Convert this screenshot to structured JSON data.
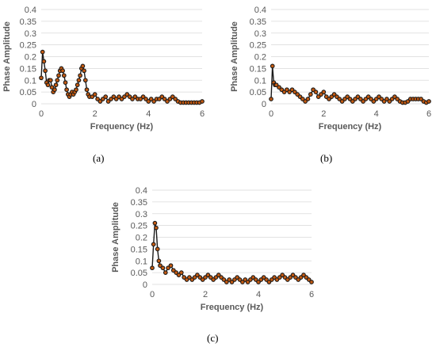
{
  "captions": [
    "(a)",
    "(b)",
    "(c)"
  ],
  "colors": {
    "marker_fill": "#c55a11",
    "marker_stroke": "#1a1a1a",
    "line": "#1a1a1a",
    "grid": "#d9d9d9",
    "text": "#595959"
  },
  "chart_data": [
    {
      "type": "line",
      "panel": "(a)",
      "title": "",
      "xlabel": "Frequency (Hz)",
      "ylabel": "Phase Amplitude",
      "xlim": [
        0,
        6
      ],
      "ylim": [
        0,
        0.4
      ],
      "xticks": [
        "0",
        "2",
        "4",
        "6"
      ],
      "yticks": [
        "0",
        "0.05",
        "0.1",
        "0.15",
        "0.2",
        "0.25",
        "0.3",
        "0.35",
        "0.4"
      ],
      "grid": "horizontal",
      "series": [
        {
          "x": [
            0,
            0.05,
            0.1,
            0.15,
            0.2,
            0.25,
            0.3,
            0.35,
            0.4,
            0.45,
            0.5,
            0.55,
            0.6,
            0.65,
            0.7,
            0.75,
            0.8,
            0.85,
            0.9,
            0.95,
            1.0,
            1.05,
            1.1,
            1.15,
            1.2,
            1.25,
            1.3,
            1.35,
            1.4,
            1.45,
            1.5,
            1.55,
            1.6,
            1.65,
            1.7,
            1.75,
            1.8,
            1.9,
            2.0,
            2.1,
            2.2,
            2.3,
            2.4,
            2.5,
            2.6,
            2.7,
            2.8,
            2.9,
            3.0,
            3.1,
            3.2,
            3.3,
            3.4,
            3.5,
            3.6,
            3.7,
            3.8,
            3.9,
            4.0,
            4.1,
            4.2,
            4.3,
            4.4,
            4.5,
            4.6,
            4.7,
            4.8,
            4.9,
            5.0,
            5.1,
            5.2,
            5.3,
            5.4,
            5.5,
            5.6,
            5.7,
            5.8,
            5.9,
            6.0
          ],
          "y": [
            0.11,
            0.22,
            0.18,
            0.14,
            0.09,
            0.08,
            0.1,
            0.1,
            0.07,
            0.05,
            0.06,
            0.08,
            0.1,
            0.12,
            0.14,
            0.15,
            0.14,
            0.12,
            0.09,
            0.06,
            0.04,
            0.03,
            0.04,
            0.05,
            0.04,
            0.05,
            0.06,
            0.08,
            0.1,
            0.12,
            0.15,
            0.16,
            0.14,
            0.1,
            0.06,
            0.04,
            0.03,
            0.03,
            0.04,
            0.02,
            0.01,
            0.02,
            0.03,
            0.01,
            0.02,
            0.03,
            0.02,
            0.03,
            0.02,
            0.03,
            0.04,
            0.03,
            0.02,
            0.03,
            0.02,
            0.02,
            0.03,
            0.02,
            0.01,
            0.02,
            0.01,
            0.02,
            0.02,
            0.03,
            0.02,
            0.01,
            0.02,
            0.03,
            0.02,
            0.01,
            0.005,
            0.005,
            0.005,
            0.005,
            0.005,
            0.005,
            0.005,
            0.005,
            0.01
          ]
        }
      ]
    },
    {
      "type": "line",
      "panel": "(b)",
      "title": "",
      "xlabel": "Frequency (Hz)",
      "ylabel": "Phase Amplitude",
      "xlim": [
        0,
        6
      ],
      "ylim": [
        0,
        0.4
      ],
      "xticks": [
        "0",
        "2",
        "4",
        "6"
      ],
      "yticks": [
        "0",
        "0.05",
        "0.1",
        "0.15",
        "0.2",
        "0.25",
        "0.3",
        "0.35",
        "0.4"
      ],
      "grid": "horizontal",
      "series": [
        {
          "x": [
            0,
            0.05,
            0.1,
            0.15,
            0.2,
            0.3,
            0.4,
            0.5,
            0.6,
            0.7,
            0.8,
            0.9,
            1.0,
            1.1,
            1.2,
            1.3,
            1.4,
            1.5,
            1.6,
            1.7,
            1.8,
            1.9,
            2.0,
            2.1,
            2.2,
            2.3,
            2.4,
            2.5,
            2.6,
            2.7,
            2.8,
            2.9,
            3.0,
            3.1,
            3.2,
            3.3,
            3.4,
            3.5,
            3.6,
            3.7,
            3.8,
            3.9,
            4.0,
            4.1,
            4.2,
            4.3,
            4.4,
            4.5,
            4.6,
            4.7,
            4.8,
            4.9,
            5.0,
            5.1,
            5.2,
            5.3,
            5.4,
            5.5,
            5.6,
            5.7,
            5.8,
            5.9,
            6.0
          ],
          "y": [
            0.02,
            0.16,
            0.09,
            0.08,
            0.08,
            0.07,
            0.06,
            0.05,
            0.06,
            0.05,
            0.06,
            0.05,
            0.04,
            0.03,
            0.02,
            0.01,
            0.02,
            0.04,
            0.06,
            0.05,
            0.03,
            0.04,
            0.05,
            0.03,
            0.02,
            0.03,
            0.04,
            0.03,
            0.02,
            0.01,
            0.02,
            0.03,
            0.02,
            0.01,
            0.02,
            0.03,
            0.02,
            0.01,
            0.02,
            0.03,
            0.02,
            0.01,
            0.02,
            0.03,
            0.02,
            0.01,
            0.02,
            0.01,
            0.02,
            0.03,
            0.02,
            0.01,
            0.005,
            0.005,
            0.01,
            0.02,
            0.02,
            0.02,
            0.02,
            0.02,
            0.01,
            0.005,
            0.01
          ]
        }
      ]
    },
    {
      "type": "line",
      "panel": "(c)",
      "title": "",
      "xlabel": "Frequency (Hz)",
      "ylabel": "Phase Amplitude",
      "xlim": [
        0,
        6
      ],
      "ylim": [
        0,
        0.4
      ],
      "xticks": [
        "0",
        "2",
        "4",
        "6"
      ],
      "yticks": [
        "0",
        "0.05",
        "0.1",
        "0.15",
        "0.2",
        "0.25",
        "0.3",
        "0.35",
        "0.4"
      ],
      "grid": "horizontal",
      "series": [
        {
          "x": [
            0,
            0.05,
            0.1,
            0.15,
            0.2,
            0.25,
            0.3,
            0.4,
            0.5,
            0.6,
            0.7,
            0.8,
            0.9,
            1.0,
            1.1,
            1.2,
            1.3,
            1.4,
            1.5,
            1.6,
            1.7,
            1.8,
            1.9,
            2.0,
            2.1,
            2.2,
            2.3,
            2.4,
            2.5,
            2.6,
            2.7,
            2.8,
            2.9,
            3.0,
            3.1,
            3.2,
            3.3,
            3.4,
            3.5,
            3.6,
            3.7,
            3.8,
            3.9,
            4.0,
            4.1,
            4.2,
            4.3,
            4.4,
            4.5,
            4.6,
            4.7,
            4.8,
            4.9,
            5.0,
            5.1,
            5.2,
            5.3,
            5.4,
            5.5,
            5.6,
            5.7,
            5.8,
            5.9,
            6.0
          ],
          "y": [
            0.07,
            0.17,
            0.26,
            0.24,
            0.15,
            0.1,
            0.08,
            0.07,
            0.05,
            0.07,
            0.08,
            0.06,
            0.05,
            0.04,
            0.05,
            0.03,
            0.02,
            0.03,
            0.02,
            0.03,
            0.04,
            0.03,
            0.02,
            0.03,
            0.04,
            0.03,
            0.02,
            0.03,
            0.04,
            0.03,
            0.02,
            0.01,
            0.02,
            0.01,
            0.02,
            0.03,
            0.02,
            0.01,
            0.02,
            0.01,
            0.02,
            0.03,
            0.02,
            0.01,
            0.02,
            0.03,
            0.02,
            0.01,
            0.02,
            0.03,
            0.02,
            0.03,
            0.04,
            0.03,
            0.02,
            0.03,
            0.04,
            0.03,
            0.02,
            0.03,
            0.04,
            0.03,
            0.02,
            0.01
          ]
        }
      ]
    }
  ]
}
